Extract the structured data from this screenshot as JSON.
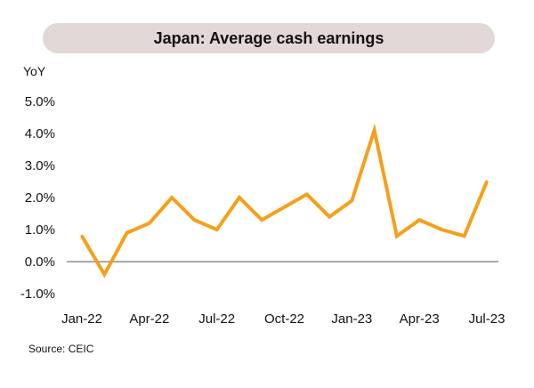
{
  "chart_data": {
    "type": "line",
    "title": "Japan: Average cash earnings",
    "ylabel": "YoY",
    "xlabel": "",
    "source": "Source: CEIC",
    "ylim": [
      -1,
      5
    ],
    "y_ticks": [
      5,
      4,
      3,
      2,
      1,
      0,
      -1
    ],
    "y_tick_labels": [
      "5.0%",
      "4.0%",
      "3.0%",
      "2.0%",
      "1.0%",
      "0.0%",
      "-1.0%"
    ],
    "x": [
      "Jan-22",
      "Feb-22",
      "Mar-22",
      "Apr-22",
      "May-22",
      "Jun-22",
      "Jul-22",
      "Aug-22",
      "Sep-22",
      "Oct-22",
      "Nov-22",
      "Dec-22",
      "Jan-23",
      "Feb-23",
      "Mar-23",
      "Apr-23",
      "May-23",
      "Jun-23",
      "Jul-23"
    ],
    "x_tick_labels": [
      {
        "index": 0,
        "label": "Jan-22"
      },
      {
        "index": 3,
        "label": "Apr-22"
      },
      {
        "index": 6,
        "label": "Jul-22"
      },
      {
        "index": 9,
        "label": "Oct-22"
      },
      {
        "index": 12,
        "label": "Jan-23"
      },
      {
        "index": 15,
        "label": "Apr-23"
      },
      {
        "index": 18,
        "label": "Jul-23"
      }
    ],
    "series": [
      {
        "values": [
          0.8,
          -0.4,
          0.9,
          1.2,
          2.0,
          1.3,
          1.0,
          2.0,
          1.3,
          1.7,
          2.1,
          1.4,
          1.9,
          4.1,
          0.8,
          1.3,
          1.0,
          0.8,
          2.5
        ],
        "color": "#f5a01a"
      }
    ],
    "grid": false,
    "zero_line": true,
    "zero_line_color": "#555555"
  },
  "colors": {
    "line": "#f5a01a",
    "title_background": "#e3d8d8",
    "text": "#111111"
  }
}
